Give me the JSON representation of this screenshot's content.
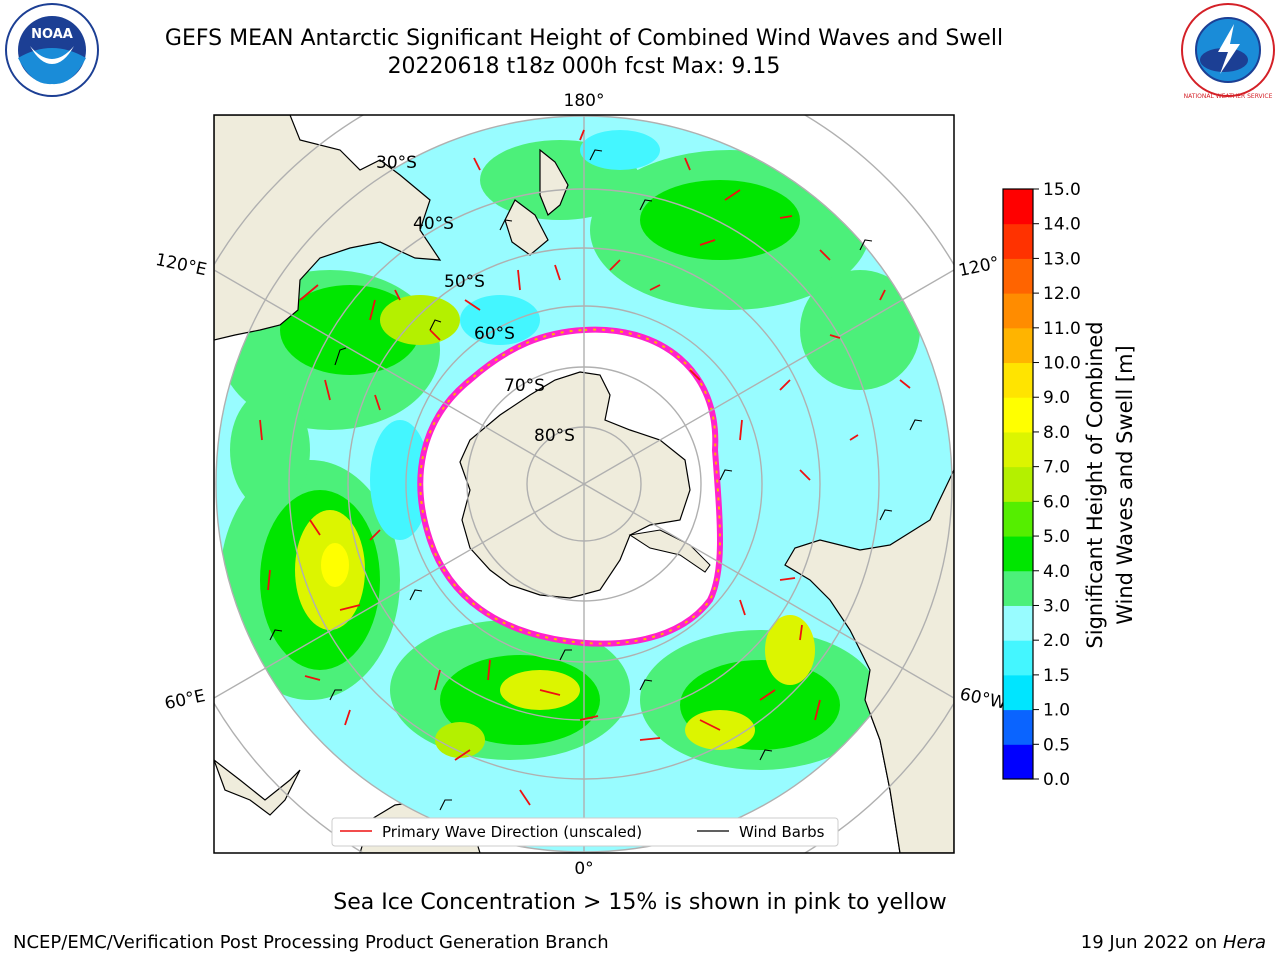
{
  "header": {
    "title_line1": "GEFS MEAN Antarctic Significant Height of Combined Wind Waves and Swell",
    "title_line2": "20220618 t18z 000h fcst   Max: 9.15"
  },
  "logos": {
    "noaa_text": "NOAA",
    "nws_text": "NATIONAL WEATHER SERVICE"
  },
  "map": {
    "projection": "south-polar-stereographic",
    "meridian_labels": {
      "top": "180°",
      "bottom": "0°",
      "upper_left": "120°E",
      "lower_left": "60°E",
      "upper_right": "120°",
      "lower_right": "60°W"
    },
    "latitude_labels": [
      "30°S",
      "40°S",
      "50°S",
      "60°S",
      "70°S",
      "80°S"
    ],
    "legend": {
      "wave_direction": "Primary Wave Direction (unscaled)",
      "wind_barbs": "Wind Barbs"
    },
    "land_color": "#efecdc"
  },
  "colorbar": {
    "label_line1": "Significant Height of Combined",
    "label_line2": "Wind Waves and Swell [m]",
    "ticks": [
      "0.0",
      "0.5",
      "1.0",
      "1.5",
      "2.0",
      "3.0",
      "4.0",
      "5.0",
      "6.0",
      "7.0",
      "8.0",
      "9.0",
      "10.0",
      "11.0",
      "12.0",
      "13.0",
      "14.0",
      "15.0"
    ],
    "colors": [
      "#0000ff",
      "#0a64ff",
      "#00e5ff",
      "#44f6ff",
      "#98fcff",
      "#4cf07a",
      "#00e600",
      "#55ee00",
      "#b4f000",
      "#dcf500",
      "#ffff00",
      "#ffe400",
      "#ffb400",
      "#ff8c00",
      "#ff6400",
      "#ff3200",
      "#ff0000"
    ]
  },
  "notes": {
    "sea_ice": "Sea Ice Concentration > 15% is shown in pink to yellow"
  },
  "footer": {
    "left": "NCEP/EMC/Verification Post Processing Product Generation Branch",
    "date": "19 Jun 2022 on ",
    "machine": "Hera"
  }
}
